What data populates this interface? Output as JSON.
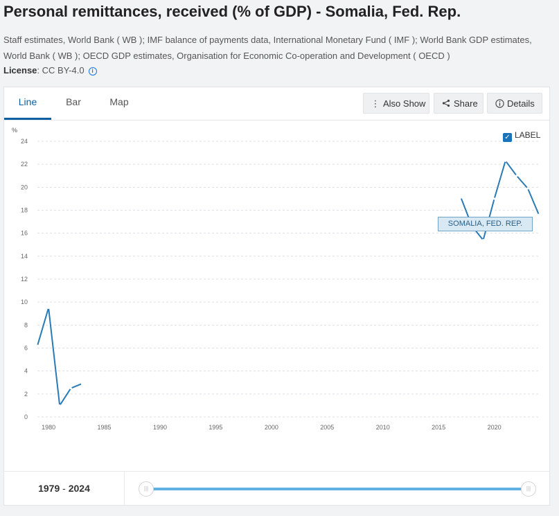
{
  "title": "Personal remittances, received (% of GDP) - Somalia, Fed. Rep.",
  "sources": "Staff estimates, World Bank ( WB ); IMF balance of payments data, International Monetary Fund ( IMF ); World Bank GDP estimates, World Bank ( WB ); OECD GDP estimates, Organisation for Economic Co-operation and Development ( OECD )",
  "license": {
    "label": "License",
    "value": ": CC BY-4.0"
  },
  "tabs": [
    {
      "label": "Line",
      "active": true
    },
    {
      "label": "Bar",
      "active": false
    },
    {
      "label": "Map",
      "active": false
    }
  ],
  "toolbar": {
    "also_show": "Also Show",
    "share": "Share",
    "details": "Details"
  },
  "label_toggle": {
    "label": "LABEL",
    "checked": true
  },
  "series_tag": "SOMALIA, FED. REP.",
  "footer": {
    "range_start": "1979",
    "range_sep": " - ",
    "range_end": "2024"
  },
  "colors": {
    "accent": "#0a5fa3",
    "series": "#2a7ab5",
    "slider": "#5fb1e3"
  },
  "chart_data": {
    "type": "line",
    "ylabel": "%",
    "ylim": [
      0,
      24
    ],
    "yticks": [
      0,
      2,
      4,
      6,
      8,
      10,
      12,
      14,
      16,
      18,
      20,
      22,
      24
    ],
    "xlim": [
      1979,
      2024
    ],
    "xticks": [
      1980,
      1985,
      1990,
      1995,
      2000,
      2005,
      2010,
      2015,
      2020
    ],
    "grid": true,
    "series": [
      {
        "name": "SOMALIA, FED. REP.",
        "segments": [
          {
            "x": [
              1979,
              1980,
              1981,
              1982,
              1983
            ],
            "y": [
              6.2,
              9.5,
              1.0,
              2.5,
              2.9
            ]
          },
          {
            "x": [
              2017,
              2018,
              2019,
              2020,
              2021,
              2022,
              2023,
              2024
            ],
            "y": [
              19.1,
              16.6,
              15.4,
              19.0,
              22.3,
              21.0,
              19.9,
              17.6
            ]
          }
        ]
      }
    ]
  }
}
